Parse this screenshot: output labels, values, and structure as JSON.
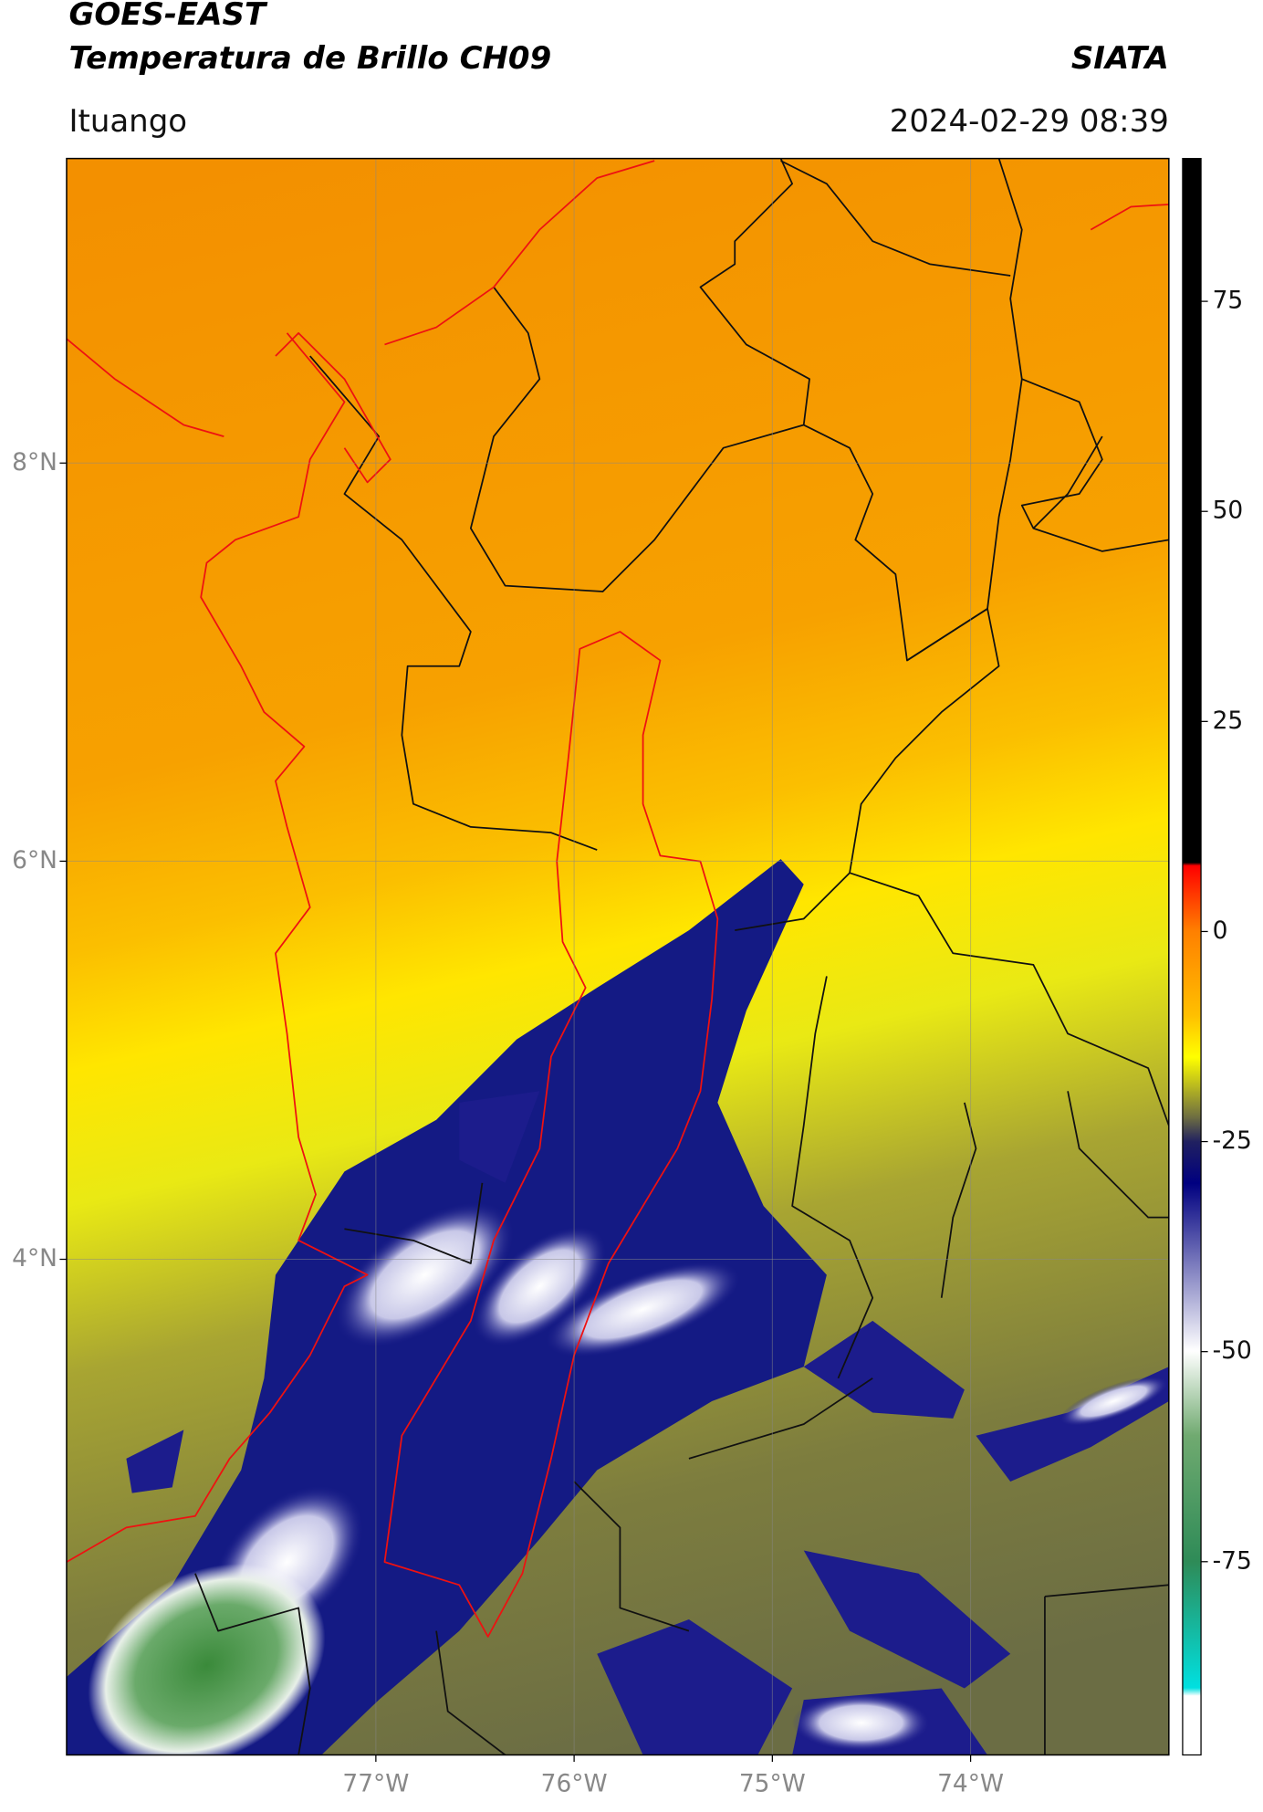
{
  "header": {
    "title": "GOES-EAST",
    "subtitle": "Temperatura de Brillo CH09",
    "source": "SIATA",
    "location": "Ituango",
    "datetime": "2024-02-29 08:39"
  },
  "chart_data": {
    "type": "map",
    "xlim": [
      -78.56,
      -73.0
    ],
    "ylim": [
      1.51,
      9.53
    ],
    "xticks": [
      {
        "value": -77,
        "label": "77°W"
      },
      {
        "value": -76,
        "label": "76°W"
      },
      {
        "value": -75,
        "label": "75°W"
      },
      {
        "value": -74,
        "label": "74°W"
      }
    ],
    "yticks": [
      {
        "value": 8,
        "label": "8°N"
      },
      {
        "value": 6,
        "label": "6°N"
      },
      {
        "value": 4,
        "label": "4°N"
      }
    ],
    "grid": true,
    "colorbar": {
      "lim": [
        -98,
        92
      ],
      "ticks": [
        75,
        50,
        25,
        0,
        -25,
        -50,
        -75
      ]
    }
  }
}
